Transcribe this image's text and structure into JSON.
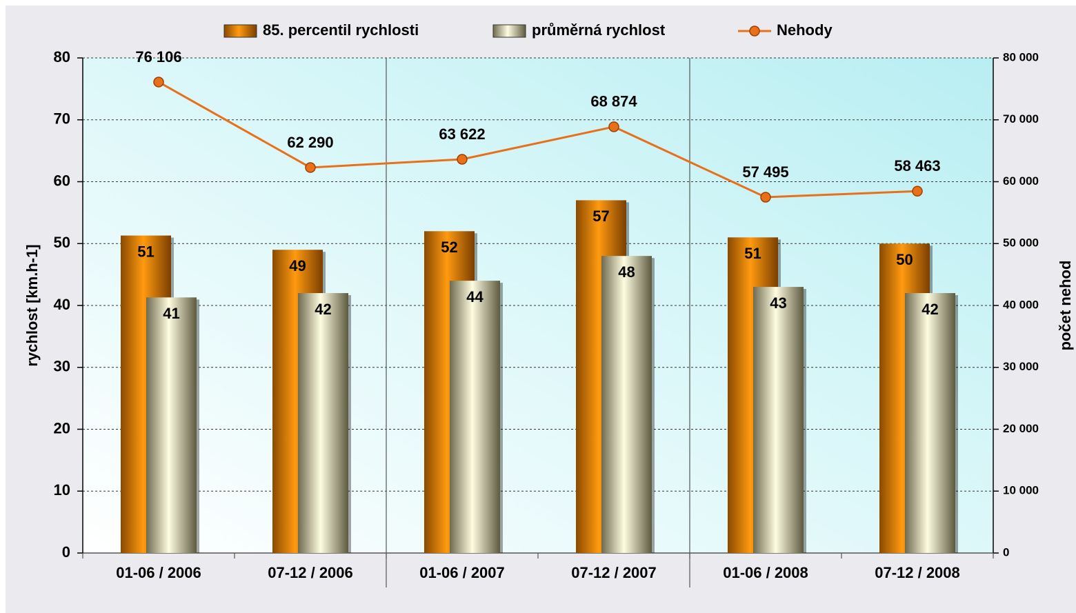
{
  "chart_data": {
    "type": "bar",
    "categories": [
      "01-06 / 2006",
      "07-12 / 2006",
      "01-06 / 2007",
      "07-12 / 2007",
      "01-06 / 2008",
      "07-12 / 2008"
    ],
    "series": [
      {
        "name": "85. percentil rychlosti",
        "type": "bar",
        "color": "#f08c00",
        "values": [
          51.3,
          49,
          52,
          57,
          51,
          50
        ],
        "value_labels": [
          "51",
          "49",
          "52",
          "57",
          "51",
          "50"
        ]
      },
      {
        "name": "průměrná rychlost",
        "type": "bar",
        "color": "#e8e4b8",
        "values": [
          41.3,
          42,
          44,
          48,
          43,
          42
        ],
        "value_labels": [
          "41",
          "42",
          "44",
          "48",
          "43",
          "42"
        ]
      },
      {
        "name": "Nehody",
        "type": "line",
        "axis": "y2",
        "color": "#e8701a",
        "values": [
          76106,
          62290,
          63622,
          68874,
          57495,
          58463
        ],
        "value_labels": [
          "76 106",
          "62 290",
          "63 622",
          "68 874",
          "57 495",
          "58 463"
        ]
      }
    ],
    "ylabel": "rychlost [km.h-1]",
    "y2label": "počet nehod",
    "ylim": [
      0,
      80
    ],
    "yticks": [
      0,
      10,
      20,
      30,
      40,
      50,
      60,
      70,
      80
    ],
    "y2lim": [
      0,
      80000
    ],
    "y2ticks": [
      0,
      {
        "value": 10000,
        "label": "10 000"
      },
      {
        "value": 20000,
        "label": "20 000"
      },
      {
        "value": 30000,
        "label": "30 000"
      },
      {
        "value": 40000,
        "label": "40 000"
      },
      {
        "value": 50000,
        "label": "50 000"
      },
      {
        "value": 60000,
        "label": "60 000"
      },
      {
        "value": 70000,
        "label": "70 000"
      },
      {
        "value": 80000,
        "label": "80 000"
      }
    ],
    "grid": true,
    "legend": "top"
  }
}
